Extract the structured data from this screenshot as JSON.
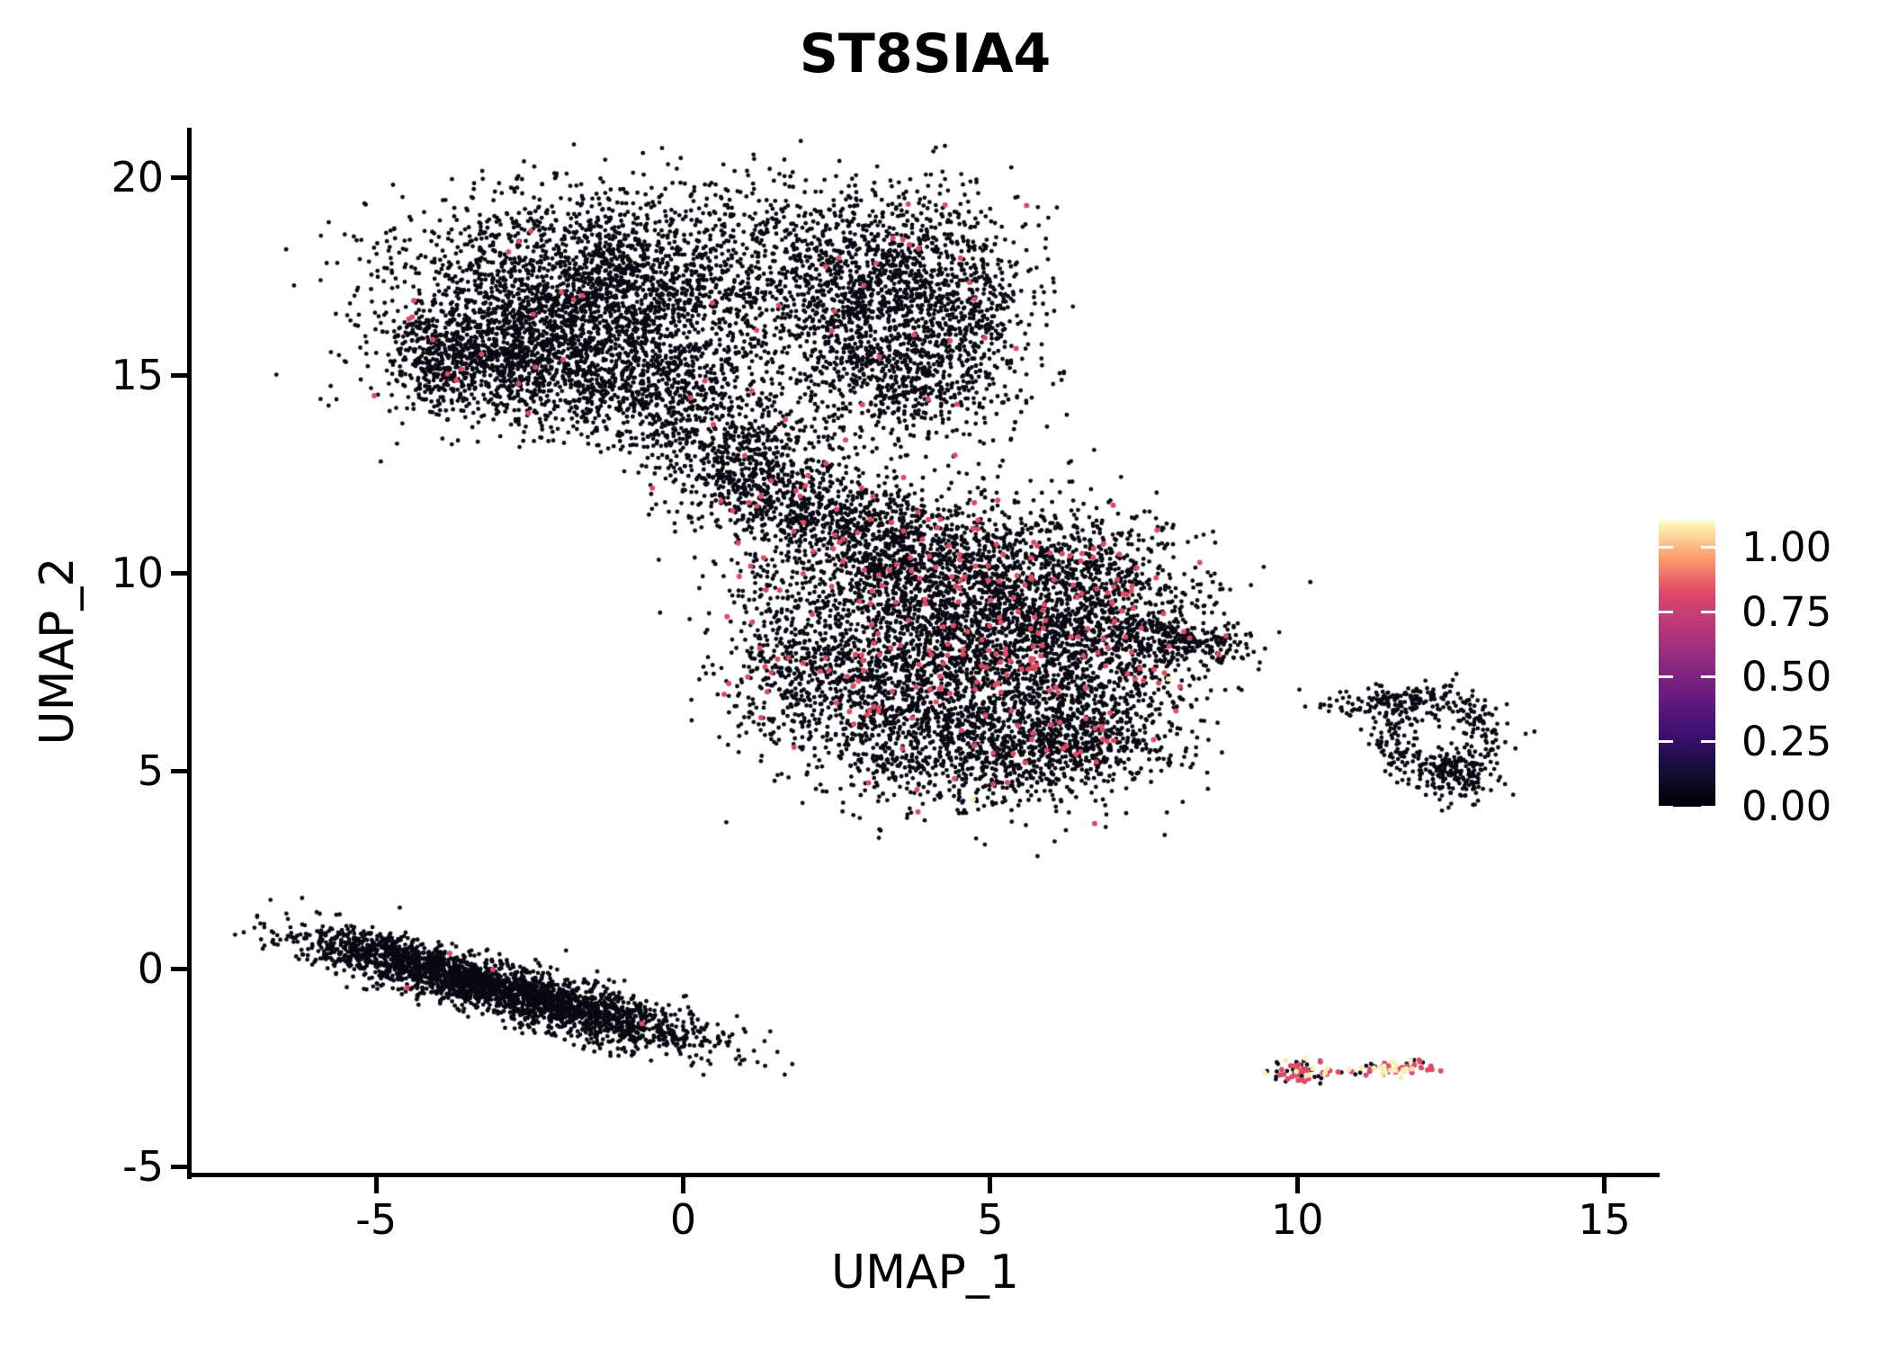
{
  "figure": {
    "title": "ST8SIA4"
  },
  "axes": {
    "x_title": "UMAP_1",
    "y_title": "UMAP_2",
    "x_tick_labels": [
      "-5",
      "0",
      "5",
      "10",
      "15"
    ],
    "y_tick_labels": [
      "-5",
      "0",
      "5",
      "10",
      "15",
      "20"
    ]
  },
  "colorbar": {
    "labels": [
      "1.00",
      "0.75",
      "0.50",
      "0.25",
      "0.00"
    ],
    "values": [
      1.0,
      0.75,
      0.5,
      0.25,
      0.0
    ]
  },
  "chart_data": {
    "type": "scatter",
    "title": "ST8SIA4",
    "xlabel": "UMAP_1",
    "ylabel": "UMAP_2",
    "xlim": [
      -8.02,
      15.9
    ],
    "ylim": [
      -5.2,
      21.25
    ],
    "x_ticks": [
      -5,
      0,
      5,
      10,
      15
    ],
    "y_ticks": [
      -5,
      0,
      5,
      10,
      15,
      20
    ],
    "grid": false,
    "legend_position": "right",
    "colorbar": {
      "ticks": [
        0.0,
        0.25,
        0.5,
        0.75,
        1.0
      ],
      "vmax": 1.104,
      "colormap": "magma",
      "stops": [
        [
          "0%",
          "#000004"
        ],
        [
          "12.5%",
          "#140E36"
        ],
        [
          "25%",
          "#3B0F70"
        ],
        [
          "37.5%",
          "#641A80"
        ],
        [
          "50%",
          "#8C2981"
        ],
        [
          "62.5%",
          "#B73779"
        ],
        [
          "75%",
          "#DE4968"
        ],
        [
          "87.5%",
          "#FE9F6D"
        ],
        [
          "100%",
          "#FCFDBF"
        ]
      ]
    },
    "point_colors": {
      "zero": "#0A0812",
      "mid": "#DF4A66",
      "high": "#F7EFB4"
    },
    "point_radius": {
      "zero": 2.4,
      "mid": 3.0,
      "high": 3.0
    },
    "clusters": [
      {
        "name": "topleft-main",
        "shape": "gauss",
        "cx": -1.5,
        "cy": 16.9,
        "sx": 1.55,
        "sy": 1.25,
        "rot": -5,
        "n": 2400,
        "p_mid": 0.006,
        "p_high": 0
      },
      {
        "name": "topleft-lowerleft",
        "shape": "gauss",
        "cx": -2.9,
        "cy": 15.4,
        "sx": 0.95,
        "sy": 0.75,
        "rot": 20,
        "n": 800,
        "p_mid": 0.005,
        "p_high": 0
      },
      {
        "name": "topleft-lefttip",
        "shape": "gauss",
        "cx": -4.0,
        "cy": 15.6,
        "sx": 0.45,
        "sy": 0.55,
        "rot": 0,
        "n": 220,
        "p_mid": 0.004,
        "p_high": 0
      },
      {
        "name": "topleft-bottommid",
        "shape": "gauss",
        "cx": -0.6,
        "cy": 14.6,
        "sx": 1.0,
        "sy": 0.65,
        "rot": 0,
        "n": 550,
        "p_mid": 0.006,
        "p_high": 0
      },
      {
        "name": "topleft-rightlobe",
        "shape": "gauss",
        "cx": 3.2,
        "cy": 17.0,
        "sx": 1.05,
        "sy": 1.35,
        "rot": 0,
        "n": 1500,
        "p_mid": 0.012,
        "p_high": 0
      },
      {
        "name": "topleft-rightlower",
        "shape": "gauss",
        "cx": 3.8,
        "cy": 14.8,
        "sx": 0.85,
        "sy": 0.8,
        "rot": 0,
        "n": 420,
        "p_mid": 0.012,
        "p_high": 0
      },
      {
        "name": "topleft-rightfringe",
        "shape": "gauss",
        "cx": 4.7,
        "cy": 16.8,
        "sx": 0.55,
        "sy": 1.2,
        "rot": 0,
        "n": 260,
        "p_mid": 0.008,
        "p_high": 0
      },
      {
        "name": "topleft-topfringe",
        "shape": "gauss",
        "cx": 0.3,
        "cy": 18.6,
        "sx": 2.2,
        "sy": 0.8,
        "rot": 0,
        "n": 380,
        "p_mid": 0.005,
        "p_high": 0
      },
      {
        "name": "neck-upper",
        "shape": "gauss",
        "cx": 0.7,
        "cy": 13.3,
        "sx": 0.85,
        "sy": 0.6,
        "rot": 0,
        "n": 420,
        "p_mid": 0.015,
        "p_high": 0
      },
      {
        "name": "neck-lower",
        "shape": "gauss",
        "cx": 1.3,
        "cy": 12.2,
        "sx": 0.8,
        "sy": 0.55,
        "rot": 0,
        "n": 330,
        "p_mid": 0.02,
        "p_high": 0
      },
      {
        "name": "bridge-band",
        "shape": "gauss",
        "cx": 2.0,
        "cy": 11.5,
        "sx": 0.9,
        "sy": 0.4,
        "rot": 0,
        "n": 260,
        "p_mid": 0.025,
        "p_high": 0
      },
      {
        "name": "bridge-curve",
        "shape": "gauss",
        "cx": 3.2,
        "cy": 10.3,
        "sx": 0.35,
        "sy": 0.7,
        "rot": 0,
        "n": 140,
        "p_mid": 0.03,
        "p_high": 0
      },
      {
        "name": "bridge-stragglers",
        "shape": "gauss",
        "cx": 1.2,
        "cy": 9.8,
        "sx": 0.5,
        "sy": 0.7,
        "rot": 0,
        "n": 40,
        "p_mid": 0.02,
        "p_high": 0
      },
      {
        "name": "middle-main",
        "shape": "gauss",
        "cx": 4.7,
        "cy": 8.2,
        "sx": 1.55,
        "sy": 1.5,
        "rot": 0,
        "n": 3000,
        "p_mid": 0.05,
        "p_high": 0.0007
      },
      {
        "name": "middle-top",
        "shape": "gauss",
        "cx": 3.7,
        "cy": 10.7,
        "sx": 1.25,
        "sy": 0.8,
        "rot": 0,
        "n": 750,
        "p_mid": 0.035,
        "p_high": 0
      },
      {
        "name": "middle-left",
        "shape": "gauss",
        "cx": 2.2,
        "cy": 7.5,
        "sx": 0.8,
        "sy": 1.0,
        "rot": 0,
        "n": 450,
        "p_mid": 0.03,
        "p_high": 0
      },
      {
        "name": "middle-bottom",
        "shape": "gauss",
        "cx": 4.8,
        "cy": 5.5,
        "sx": 1.35,
        "sy": 0.75,
        "rot": 0,
        "n": 850,
        "p_mid": 0.012,
        "p_high": 0.001
      },
      {
        "name": "middle-right",
        "shape": "gauss",
        "cx": 7.0,
        "cy": 8.3,
        "sx": 0.8,
        "sy": 1.1,
        "rot": 0,
        "n": 600,
        "p_mid": 0.05,
        "p_high": 0
      },
      {
        "name": "middle-tip",
        "shape": "gauss",
        "cx": 8.35,
        "cy": 8.25,
        "sx": 0.5,
        "sy": 0.25,
        "rot": 0,
        "n": 170,
        "p_mid": 0.03,
        "p_high": 0
      },
      {
        "name": "middle-topright",
        "shape": "gauss",
        "cx": 6.4,
        "cy": 10.3,
        "sx": 0.9,
        "sy": 0.6,
        "rot": 0,
        "n": 280,
        "p_mid": 0.04,
        "p_high": 0
      },
      {
        "name": "middle-bottomright",
        "shape": "gauss",
        "cx": 6.6,
        "cy": 5.9,
        "sx": 0.7,
        "sy": 0.6,
        "rot": 0,
        "n": 330,
        "p_mid": 0.02,
        "p_high": 0
      },
      {
        "name": "ring-main",
        "shape": "ring",
        "cx": 12.25,
        "cy": 5.9,
        "rx": 0.75,
        "ry": 0.95,
        "sr": 0.22,
        "n": 300,
        "p_mid": 0,
        "p_high": 0
      },
      {
        "name": "ring-bottomright",
        "shape": "gauss",
        "cx": 12.6,
        "cy": 4.9,
        "sx": 0.35,
        "sy": 0.35,
        "rot": 0,
        "n": 140,
        "p_mid": 0,
        "p_high": 0
      },
      {
        "name": "ring-topleft",
        "shape": "gauss",
        "cx": 11.6,
        "cy": 6.8,
        "sx": 0.45,
        "sy": 0.2,
        "rot": 0,
        "n": 90,
        "p_mid": 0,
        "p_high": 0
      },
      {
        "name": "ring-lefttrail",
        "shape": "gauss",
        "cx": 10.9,
        "cy": 6.6,
        "sx": 0.35,
        "sy": 0.15,
        "rot": 0,
        "n": 30,
        "p_mid": 0,
        "p_high": 0
      },
      {
        "name": "band-left",
        "shape": "gauss",
        "cx": -4.4,
        "cy": 0.1,
        "sx": 1.05,
        "sy": 0.3,
        "rot": -22,
        "n": 1150,
        "p_mid": 0,
        "p_high": 0
      },
      {
        "name": "band-right",
        "shape": "gauss",
        "cx": -1.8,
        "cy": -1.0,
        "sx": 1.2,
        "sy": 0.32,
        "rot": -22,
        "n": 1350,
        "p_mid": 0,
        "p_high": 0
      },
      {
        "name": "band-middle",
        "shape": "gauss",
        "cx": -3.1,
        "cy": -0.5,
        "sx": 0.9,
        "sy": 0.25,
        "rot": -22,
        "n": 350,
        "p_mid": 0,
        "p_high": 0
      },
      {
        "name": "bottomright-blob1",
        "shape": "gauss",
        "cx": 10.05,
        "cy": -2.6,
        "sx": 0.26,
        "sy": 0.17,
        "rot": 0,
        "n": 62,
        "p_mid": 0.42,
        "p_high": 0.18
      },
      {
        "name": "bottomright-blob2",
        "shape": "gauss",
        "cx": 11.65,
        "cy": -2.52,
        "sx": 0.33,
        "sy": 0.09,
        "rot": 10,
        "n": 58,
        "p_mid": 0.5,
        "p_high": 0.22
      }
    ],
    "fixed_points": [
      {
        "x": 6.7,
        "y": 3.67,
        "c": "mid"
      },
      {
        "x": -3.8,
        "y": 0.39,
        "c": "mid"
      },
      {
        "x": -3.1,
        "y": -0.02,
        "c": "mid"
      },
      {
        "x": -4.5,
        "y": -0.48,
        "c": "mid"
      },
      {
        "x": -0.67,
        "y": -1.39,
        "c": "mid"
      },
      {
        "x": 6.88,
        "y": 3.58,
        "c": "zero"
      },
      {
        "x": 10.72,
        "y": -2.62,
        "c": "zero"
      },
      {
        "x": 6.55,
        "y": 4.68,
        "c": "zero"
      },
      {
        "x": 7.9,
        "y": 7.32,
        "c": "high"
      },
      {
        "x": 4.72,
        "y": 4.28,
        "c": "high"
      }
    ]
  }
}
